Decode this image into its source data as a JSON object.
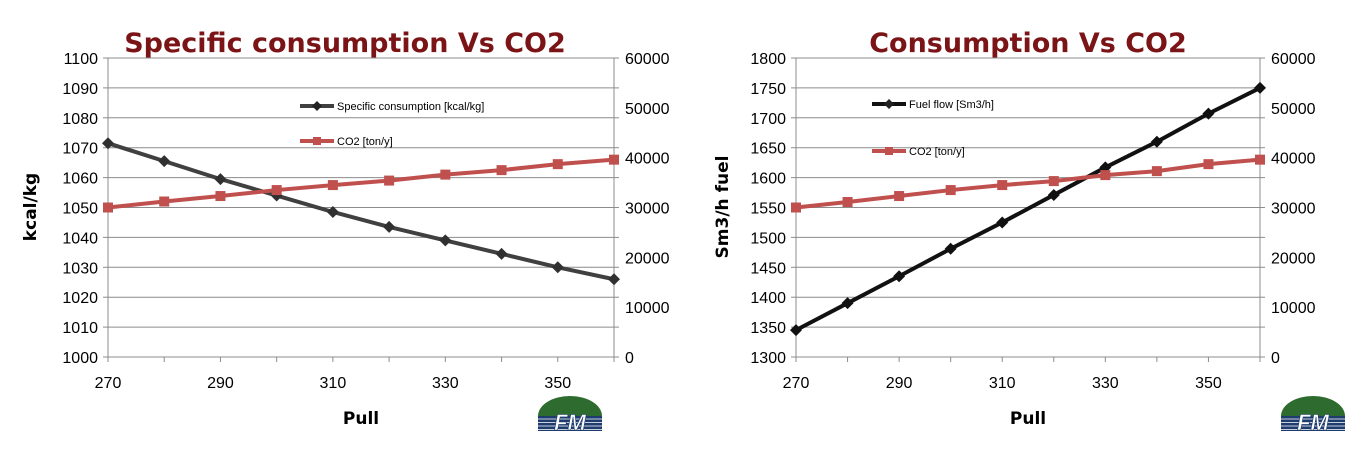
{
  "colors": {
    "title": "#7b1416",
    "series_gray": "#404040",
    "series_black": "#111111",
    "series_red": "#c0504d",
    "marker_red": "#c0504d",
    "grid": "#8c8c8c",
    "logo_blue": "#1f3c6e",
    "logo_green": "#2e6b2e"
  },
  "charts": [
    {
      "logo_text": "FM",
      "logo_icon": "fm-logo-icon"
    },
    {
      "logo_text": "FM",
      "logo_icon": "fm-logo-icon"
    }
  ],
  "chart_data": [
    {
      "type": "line",
      "title": "Specific consumption Vs CO2",
      "xlabel": "Pull",
      "ylabel": "kcal/kg",
      "y2label": "",
      "x": [
        270,
        280,
        290,
        300,
        310,
        320,
        330,
        340,
        350,
        360
      ],
      "xticks": [
        270,
        290,
        310,
        330,
        350
      ],
      "xlim": [
        270,
        360
      ],
      "ylim": [
        1000,
        1100
      ],
      "yticks": [
        1000,
        1010,
        1020,
        1030,
        1040,
        1050,
        1060,
        1070,
        1080,
        1090,
        1100
      ],
      "y2lim": [
        0,
        60000
      ],
      "y2ticks": [
        0,
        10000,
        20000,
        30000,
        40000,
        50000,
        60000
      ],
      "grid": true,
      "legend_position": "top-center",
      "series": [
        {
          "name": "Specific consumption [kcal/kg]",
          "axis": "left",
          "color": "#404040",
          "marker": "diamond",
          "values": [
            1071.5,
            1065.5,
            1059.5,
            1054,
            1048.5,
            1043.5,
            1039,
            1034.5,
            1030,
            1026
          ]
        },
        {
          "name": "CO2 [ton/y]",
          "axis": "right",
          "color": "#c0504d",
          "marker": "square",
          "values": [
            30000,
            31200,
            32300,
            33500,
            34500,
            35400,
            36600,
            37500,
            38700,
            39600
          ]
        }
      ]
    },
    {
      "type": "line",
      "title": "Consumption Vs CO2",
      "xlabel": "Pull",
      "ylabel": "Sm3/h  fuel",
      "y2label": "",
      "x": [
        270,
        280,
        290,
        300,
        310,
        320,
        330,
        340,
        350,
        360
      ],
      "xticks": [
        270,
        290,
        310,
        330,
        350
      ],
      "xlim": [
        270,
        360
      ],
      "ylim": [
        1300,
        1800
      ],
      "yticks": [
        1300,
        1350,
        1400,
        1450,
        1500,
        1550,
        1600,
        1650,
        1700,
        1750,
        1800
      ],
      "y2lim": [
        0,
        60000
      ],
      "y2ticks": [
        0,
        10000,
        20000,
        30000,
        40000,
        50000,
        60000
      ],
      "grid": true,
      "legend_position": "top-left",
      "series": [
        {
          "name": "Fuel flow [Sm3/h]",
          "axis": "left",
          "color": "#111111",
          "marker": "diamond",
          "values": [
            1345,
            1390,
            1435,
            1481,
            1525,
            1571,
            1617,
            1660,
            1707,
            1750
          ]
        },
        {
          "name": "CO2 [ton/y]",
          "axis": "right",
          "color": "#c0504d",
          "marker": "square",
          "values": [
            30000,
            31100,
            32300,
            33500,
            34500,
            35300,
            36500,
            37300,
            38700,
            39600
          ]
        }
      ]
    }
  ]
}
